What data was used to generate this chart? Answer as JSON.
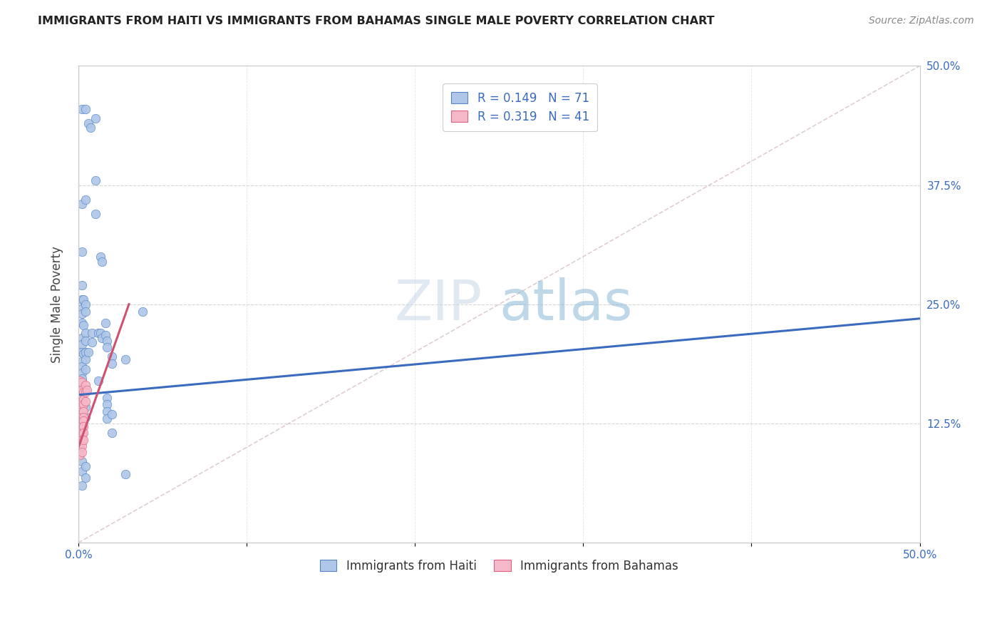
{
  "title": "IMMIGRANTS FROM HAITI VS IMMIGRANTS FROM BAHAMAS SINGLE MALE POVERTY CORRELATION CHART",
  "source": "Source: ZipAtlas.com",
  "ylabel": "Single Male Poverty",
  "xlim": [
    0.0,
    0.5
  ],
  "ylim": [
    0.0,
    0.5
  ],
  "legend_labels": [
    "Immigrants from Haiti",
    "Immigrants from Bahamas"
  ],
  "haiti_color": "#aec6e8",
  "bahamas_color": "#f5b8c8",
  "haiti_edge_color": "#5585c5",
  "bahamas_edge_color": "#e06080",
  "haiti_line_color": "#3a6bbf",
  "bahamas_line_color": "#d05070",
  "watermark_color": "#c8ddf0",
  "background_color": "#ffffff",
  "grid_color": "#cccccc",
  "title_color": "#222222",
  "source_color": "#888888",
  "tick_color": "#3a6bbf",
  "ylabel_color": "#444444",
  "diag_color": "#ddc8d0",
  "haiti_scatter": [
    [
      0.002,
      0.455
    ],
    [
      0.004,
      0.455
    ],
    [
      0.002,
      0.355
    ],
    [
      0.002,
      0.305
    ],
    [
      0.002,
      0.27
    ],
    [
      0.002,
      0.255
    ],
    [
      0.003,
      0.255
    ],
    [
      0.002,
      0.245
    ],
    [
      0.002,
      0.24
    ],
    [
      0.002,
      0.23
    ],
    [
      0.003,
      0.228
    ],
    [
      0.002,
      0.215
    ],
    [
      0.002,
      0.208
    ],
    [
      0.002,
      0.2
    ],
    [
      0.003,
      0.198
    ],
    [
      0.002,
      0.19
    ],
    [
      0.002,
      0.185
    ],
    [
      0.002,
      0.178
    ],
    [
      0.002,
      0.172
    ],
    [
      0.002,
      0.163
    ],
    [
      0.002,
      0.158
    ],
    [
      0.002,
      0.148
    ],
    [
      0.002,
      0.142
    ],
    [
      0.002,
      0.132
    ],
    [
      0.002,
      0.125
    ],
    [
      0.002,
      0.118
    ],
    [
      0.002,
      0.112
    ],
    [
      0.002,
      0.085
    ],
    [
      0.002,
      0.075
    ],
    [
      0.002,
      0.06
    ],
    [
      0.004,
      0.36
    ],
    [
      0.004,
      0.25
    ],
    [
      0.004,
      0.242
    ],
    [
      0.004,
      0.22
    ],
    [
      0.004,
      0.212
    ],
    [
      0.004,
      0.2
    ],
    [
      0.004,
      0.192
    ],
    [
      0.004,
      0.182
    ],
    [
      0.004,
      0.16
    ],
    [
      0.004,
      0.142
    ],
    [
      0.004,
      0.132
    ],
    [
      0.004,
      0.08
    ],
    [
      0.004,
      0.068
    ],
    [
      0.008,
      0.22
    ],
    [
      0.008,
      0.21
    ],
    [
      0.012,
      0.22
    ],
    [
      0.012,
      0.17
    ],
    [
      0.006,
      0.44
    ],
    [
      0.007,
      0.435
    ],
    [
      0.006,
      0.2
    ],
    [
      0.01,
      0.445
    ],
    [
      0.01,
      0.38
    ],
    [
      0.01,
      0.345
    ],
    [
      0.013,
      0.3
    ],
    [
      0.014,
      0.295
    ],
    [
      0.013,
      0.22
    ],
    [
      0.014,
      0.215
    ],
    [
      0.016,
      0.23
    ],
    [
      0.016,
      0.218
    ],
    [
      0.017,
      0.212
    ],
    [
      0.017,
      0.205
    ],
    [
      0.017,
      0.152
    ],
    [
      0.017,
      0.145
    ],
    [
      0.017,
      0.138
    ],
    [
      0.017,
      0.13
    ],
    [
      0.02,
      0.195
    ],
    [
      0.02,
      0.188
    ],
    [
      0.02,
      0.135
    ],
    [
      0.02,
      0.115
    ],
    [
      0.028,
      0.192
    ],
    [
      0.028,
      0.072
    ],
    [
      0.038,
      0.242
    ]
  ],
  "bahamas_scatter": [
    [
      0.001,
      0.17
    ],
    [
      0.001,
      0.162
    ],
    [
      0.001,
      0.158
    ],
    [
      0.001,
      0.15
    ],
    [
      0.001,
      0.145
    ],
    [
      0.001,
      0.14
    ],
    [
      0.001,
      0.135
    ],
    [
      0.001,
      0.128
    ],
    [
      0.001,
      0.122
    ],
    [
      0.001,
      0.118
    ],
    [
      0.001,
      0.112
    ],
    [
      0.001,
      0.108
    ],
    [
      0.001,
      0.102
    ],
    [
      0.001,
      0.098
    ],
    [
      0.001,
      0.092
    ],
    [
      0.002,
      0.168
    ],
    [
      0.002,
      0.16
    ],
    [
      0.002,
      0.155
    ],
    [
      0.002,
      0.148
    ],
    [
      0.002,
      0.142
    ],
    [
      0.002,
      0.138
    ],
    [
      0.002,
      0.132
    ],
    [
      0.002,
      0.128
    ],
    [
      0.002,
      0.122
    ],
    [
      0.002,
      0.115
    ],
    [
      0.002,
      0.108
    ],
    [
      0.002,
      0.102
    ],
    [
      0.002,
      0.095
    ],
    [
      0.003,
      0.158
    ],
    [
      0.003,
      0.15
    ],
    [
      0.003,
      0.145
    ],
    [
      0.003,
      0.138
    ],
    [
      0.003,
      0.132
    ],
    [
      0.003,
      0.128
    ],
    [
      0.003,
      0.122
    ],
    [
      0.003,
      0.115
    ],
    [
      0.003,
      0.108
    ],
    [
      0.004,
      0.165
    ],
    [
      0.004,
      0.158
    ],
    [
      0.004,
      0.148
    ],
    [
      0.005,
      0.16
    ]
  ],
  "haiti_line_x": [
    0.0,
    0.5
  ],
  "haiti_line_y": [
    0.155,
    0.235
  ],
  "bahamas_line_x": [
    0.0,
    0.03
  ],
  "bahamas_line_y": [
    0.1,
    0.25
  ],
  "diag_line_x": [
    0.0,
    0.5
  ],
  "diag_line_y": [
    0.0,
    0.5
  ]
}
